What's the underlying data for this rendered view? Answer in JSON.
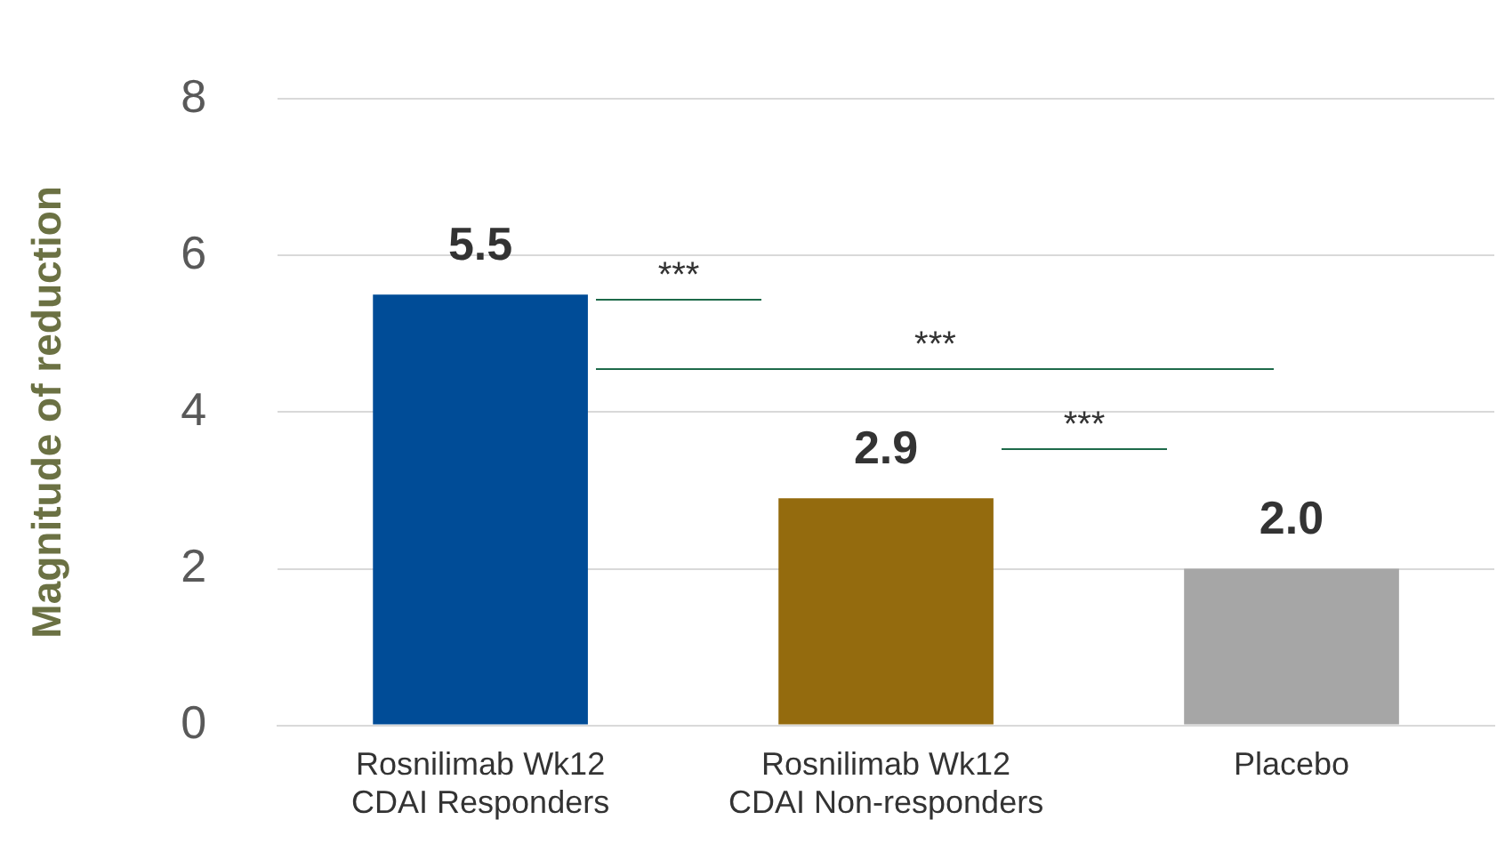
{
  "chart_data": {
    "type": "bar",
    "ylabel": "Magnitude of reduction",
    "categories": [
      [
        "Rosnilimab Wk12",
        "CDAI Responders"
      ],
      [
        "Rosnilimab Wk12",
        "CDAI Non-responders"
      ],
      "Placebo"
    ],
    "values": [
      5.5,
      2.9,
      2.0
    ],
    "colors": [
      "#004c97",
      "#946b0e",
      "#a6a6a6"
    ],
    "value_labels": [
      "5.5",
      "2.9",
      "2.0"
    ],
    "ylim": [
      0,
      8
    ],
    "yticks": [
      0,
      2,
      4,
      6,
      8
    ],
    "grid": "y",
    "legend": false,
    "annotations": [
      "***",
      "***",
      "***"
    ]
  }
}
